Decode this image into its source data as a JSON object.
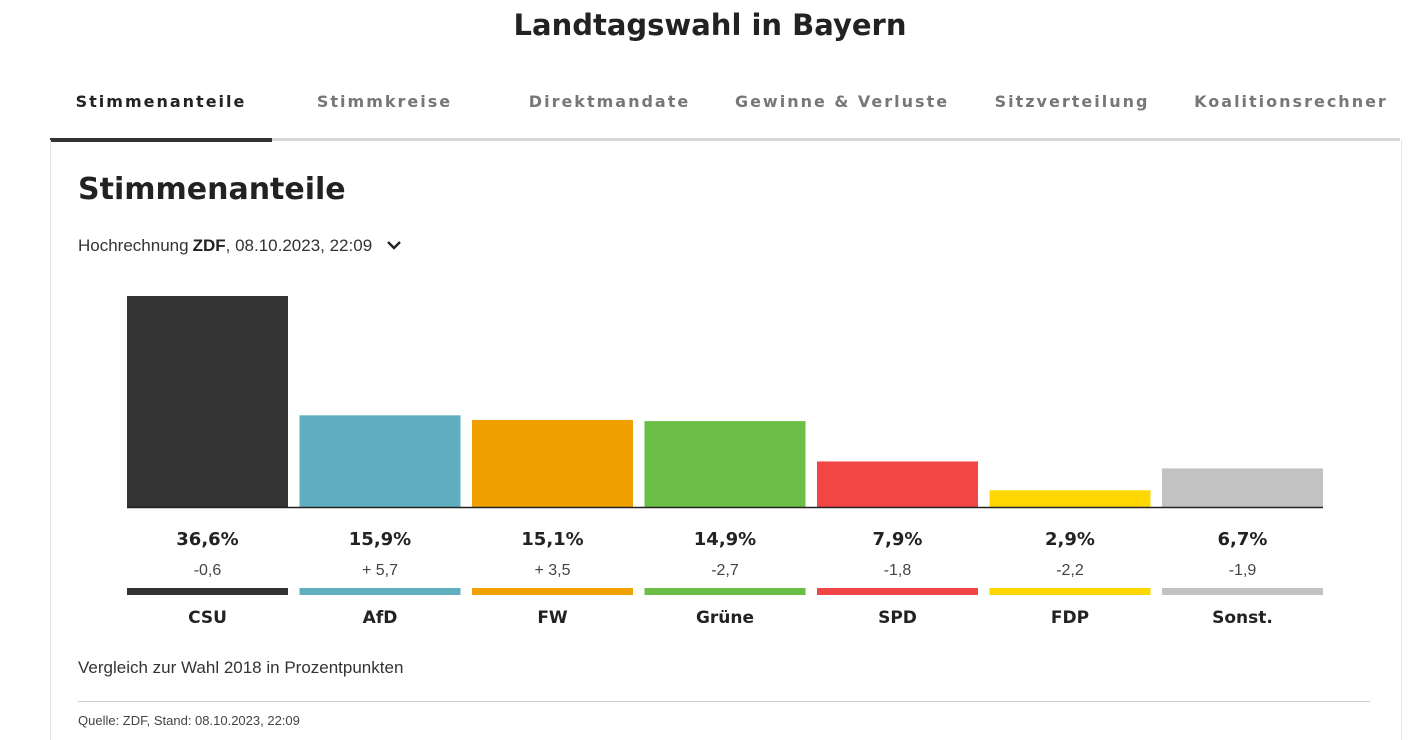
{
  "header": {
    "title": "Landtagswahl in Bayern"
  },
  "tabs": [
    {
      "label": "Stimmenanteile",
      "active": true
    },
    {
      "label": "Stimmkreise",
      "active": false
    },
    {
      "label": "Direktmandate",
      "active": false
    },
    {
      "label": "Gewinne & Verluste",
      "active": false
    },
    {
      "label": "Sitzverteilung",
      "active": false
    },
    {
      "label": "Koalitionsrechner",
      "active": false
    }
  ],
  "section": {
    "title": "Stimmenanteile",
    "projection_prefix": "Hochrechnung",
    "projection_source": "ZDF",
    "projection_time": ", 08.10.2023, 22:09",
    "dropdown_icon": "chevron-down-icon"
  },
  "chart_data": {
    "type": "bar",
    "categories": [
      "CSU",
      "AfD",
      "FW",
      "Grüne",
      "SPD",
      "FDP",
      "Sonst."
    ],
    "values": [
      36.6,
      15.9,
      15.1,
      14.9,
      7.9,
      2.9,
      6.7
    ],
    "value_labels": [
      "36,6%",
      "15,9%",
      "15,1%",
      "14,9%",
      "7,9%",
      "2,9%",
      "6,7%"
    ],
    "diff_labels": [
      "-0,6",
      "+ 5,7",
      "+ 3,5",
      "-2,7",
      "-1,8",
      "-2,2",
      "-1,9"
    ],
    "diffs": [
      -0.6,
      5.7,
      3.5,
      -2.7,
      -1.8,
      -2.2,
      -1.9
    ],
    "colors": [
      "#333333",
      "#5fafc0",
      "#f0a000",
      "#6bbf46",
      "#f04646",
      "#ffd700",
      "#c2c2c2"
    ],
    "ylim": [
      0,
      36.6
    ],
    "grid": false,
    "title": "",
    "xlabel": "",
    "ylabel": ""
  },
  "footer": {
    "comparison_note": "Vergleich zur Wahl 2018 in Prozentpunkten",
    "source": "Quelle: ZDF, Stand: 08.10.2023, 22:09"
  }
}
